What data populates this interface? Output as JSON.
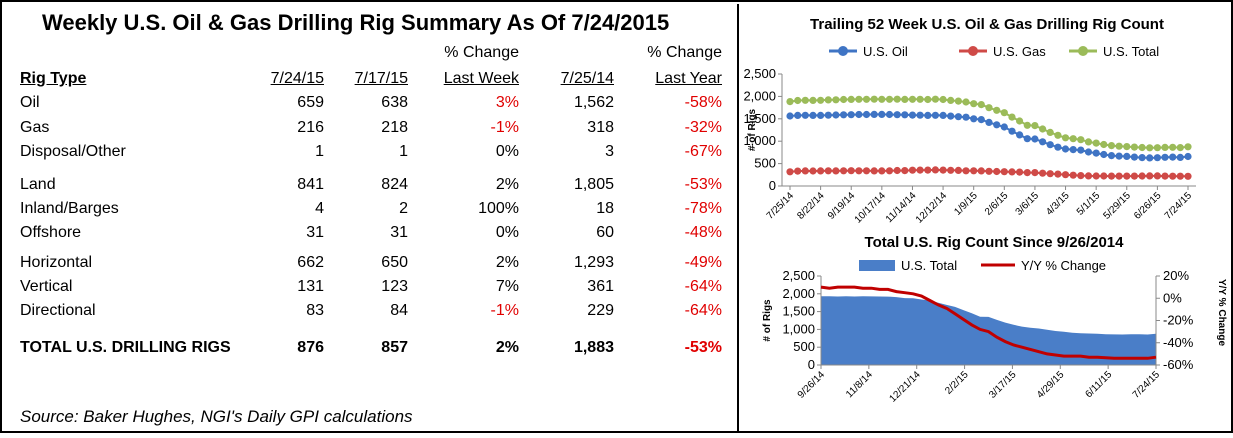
{
  "table": {
    "title": "Weekly U.S. Oil & Gas Drilling Rig Summary As Of 7/24/2015",
    "headers": {
      "rig_type": "Rig Type",
      "col1": "7/24/15",
      "col2": "7/17/15",
      "pct_week_top": "% Change",
      "pct_week_bottom": "Last Week",
      "col4": "7/25/14",
      "pct_year_top": "% Change",
      "pct_year_bottom": "Last Year"
    },
    "rows": [
      {
        "type": "Oil",
        "v1": "659",
        "v2": "638",
        "pw": "3%",
        "pw_red": true,
        "v4": "1,562",
        "py": "-58%"
      },
      {
        "type": "Gas",
        "v1": "216",
        "v2": "218",
        "pw": "-1%",
        "pw_red": true,
        "v4": "318",
        "py": "-32%"
      },
      {
        "type": "Disposal/Other",
        "v1": "1",
        "v2": "1",
        "pw": "0%",
        "pw_red": false,
        "v4": "3",
        "py": "-67%"
      },
      {
        "type": "Land",
        "v1": "841",
        "v2": "824",
        "pw": "2%",
        "pw_red": false,
        "v4": "1,805",
        "py": "-53%"
      },
      {
        "type": "Inland/Barges",
        "v1": "4",
        "v2": "2",
        "pw": "100%",
        "pw_red": false,
        "v4": "18",
        "py": "-78%"
      },
      {
        "type": "Offshore",
        "v1": "31",
        "v2": "31",
        "pw": "0%",
        "pw_red": false,
        "v4": "60",
        "py": "-48%"
      },
      {
        "type": "Horizontal",
        "v1": "662",
        "v2": "650",
        "pw": "2%",
        "pw_red": false,
        "v4": "1,293",
        "py": "-49%"
      },
      {
        "type": "Vertical",
        "v1": "131",
        "v2": "123",
        "pw": "7%",
        "pw_red": false,
        "v4": "361",
        "py": "-64%"
      },
      {
        "type": "Directional",
        "v1": "83",
        "v2": "84",
        "pw": "-1%",
        "pw_red": true,
        "v4": "229",
        "py": "-64%"
      },
      {
        "type": "TOTAL U.S. DRILLING RIGS",
        "v1": "876",
        "v2": "857",
        "pw": "2%",
        "pw_red": false,
        "v4": "1,883",
        "py": "-53%",
        "bold": true
      }
    ],
    "source": "Source: Baker Hughes, NGI's Daily GPI calculations"
  },
  "colors": {
    "red_text": "#e00000",
    "oil": "#3f74c4",
    "gas": "#cf4a47",
    "total": "#9bbb59",
    "area": "#4a7ec8",
    "yoy": "#c00000"
  },
  "chart_data": [
    {
      "type": "line",
      "title": "Trailing 52 Week U.S. Oil & Gas Drilling Rig Count",
      "ylabel": "# of Rigs",
      "ylim": [
        0,
        2500
      ],
      "yticks": [
        "0",
        "500",
        "1,000",
        "1,500",
        "2,000",
        "2,500"
      ],
      "x_labels": [
        "7/25/14",
        "8/22/14",
        "9/19/14",
        "10/17/14",
        "11/14/14",
        "12/12/14",
        "1/9/15",
        "2/6/15",
        "3/6/15",
        "4/3/15",
        "5/1/15",
        "5/29/15",
        "6/26/15",
        "7/24/15"
      ],
      "legend_position": "top",
      "series": [
        {
          "name": "U.S. Oil",
          "color": "#3f74c4",
          "values": [
            1562,
            1575,
            1578,
            1577,
            1576,
            1581,
            1585,
            1590,
            1592,
            1595,
            1596,
            1599,
            1599,
            1595,
            1592,
            1590,
            1583,
            1580,
            1575,
            1578,
            1575,
            1560,
            1546,
            1536,
            1499,
            1482,
            1420,
            1366,
            1317,
            1223,
            1140,
            1056,
            1048,
            986,
            922,
            866,
            825,
            813,
            802,
            760,
            734,
            703,
            679,
            668,
            660,
            646,
            635,
            628,
            631,
            640,
            645,
            638,
            659
          ]
        },
        {
          "name": "U.S. Gas",
          "color": "#cf4a47",
          "values": [
            318,
            333,
            336,
            334,
            336,
            340,
            338,
            340,
            342,
            340,
            339,
            338,
            337,
            340,
            345,
            344,
            353,
            356,
            355,
            359,
            356,
            351,
            348,
            340,
            339,
            336,
            328,
            323,
            320,
            315,
            310,
            300,
            300,
            286,
            275,
            266,
            252,
            242,
            232,
            225,
            223,
            223,
            222,
            221,
            220,
            222,
            224,
            225,
            225,
            221,
            218,
            218,
            216
          ]
        },
        {
          "name": "U.S. Total",
          "color": "#9bbb59",
          "values": [
            1883,
            1908,
            1914,
            1911,
            1912,
            1921,
            1923,
            1930,
            1934,
            1935,
            1935,
            1937,
            1936,
            1935,
            1937,
            1934,
            1936,
            1936,
            1930,
            1937,
            1931,
            1911,
            1894,
            1876,
            1838,
            1818,
            1748,
            1689,
            1637,
            1538,
            1450,
            1356,
            1348,
            1272,
            1197,
            1132,
            1077,
            1055,
            1034,
            985,
            957,
            926,
            901,
            889,
            880,
            868,
            859,
            853,
            856,
            861,
            863,
            857,
            876
          ]
        }
      ]
    },
    {
      "type": "area",
      "title": "Total U.S. Rig Count Since 9/26/2014",
      "ylabel": "# of Rigs",
      "y2label": "Y/Y % Change",
      "ylim": [
        0,
        2500
      ],
      "y2lim": [
        -60,
        20
      ],
      "yticks": [
        "0",
        "500",
        "1,000",
        "1,500",
        "2,000",
        "2,500"
      ],
      "y2ticks": [
        "-60%",
        "-40%",
        "-20%",
        "0%",
        "20%"
      ],
      "x_labels": [
        "9/26/14",
        "11/8/14",
        "12/21/14",
        "2/2/15",
        "3/17/15",
        "4/29/15",
        "6/11/15",
        "7/24/15"
      ],
      "legend_position": "top",
      "series": [
        {
          "name": "U.S. Total",
          "kind": "area",
          "color": "#4a7ec8",
          "values": [
            1930,
            1930,
            1925,
            1931,
            1925,
            1929,
            1927,
            1923,
            1920,
            1908,
            1880,
            1875,
            1840,
            1811,
            1750,
            1689,
            1633,
            1543,
            1456,
            1358,
            1351,
            1267,
            1192,
            1129,
            1078,
            1049,
            1026,
            988,
            954,
            932,
            905,
            894,
            885,
            875,
            866,
            859,
            857,
            863,
            865,
            857,
            876
          ]
        },
        {
          "name": "Y/Y % Change",
          "kind": "line",
          "color": "#c00000",
          "values": [
            10,
            9,
            10,
            10,
            10,
            9,
            9,
            8,
            8,
            6,
            5,
            4,
            2,
            -2,
            -6,
            -9,
            -14,
            -19,
            -24,
            -28,
            -30,
            -35,
            -39,
            -42,
            -44,
            -46,
            -48,
            -50,
            -51,
            -52,
            -52,
            -52,
            -53,
            -53,
            -53.5,
            -54,
            -54,
            -54,
            -54,
            -54,
            -53
          ]
        }
      ]
    }
  ]
}
